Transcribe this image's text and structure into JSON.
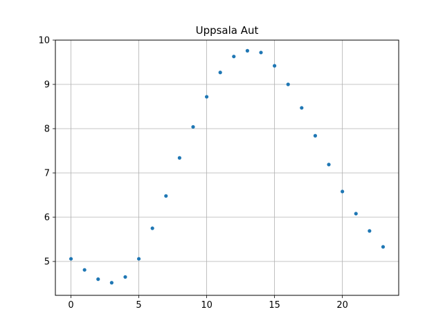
{
  "chart_data": {
    "type": "scatter",
    "title": "Uppsala Aut",
    "xlabel": "",
    "ylabel": "",
    "xlim": [
      -1.15,
      24.15
    ],
    "ylim": [
      4.235,
      10.0
    ],
    "xticks": [
      0,
      5,
      10,
      15,
      20
    ],
    "yticks": [
      5,
      6,
      7,
      8,
      9,
      10
    ],
    "grid": true,
    "legend": "none",
    "marker_color": "#1f77b4",
    "series": [
      {
        "x": [
          0,
          1,
          2,
          3,
          4,
          5,
          6,
          7,
          8,
          9,
          10,
          11,
          12,
          13,
          14,
          15,
          16,
          17,
          18,
          19,
          20,
          21,
          22,
          23
        ],
        "y": [
          5.06,
          4.81,
          4.6,
          4.52,
          4.65,
          5.06,
          5.75,
          6.48,
          7.34,
          8.04,
          8.72,
          9.27,
          9.63,
          9.76,
          9.72,
          9.42,
          9.0,
          8.47,
          7.84,
          7.19,
          6.58,
          6.08,
          5.69,
          5.33
        ]
      }
    ]
  }
}
